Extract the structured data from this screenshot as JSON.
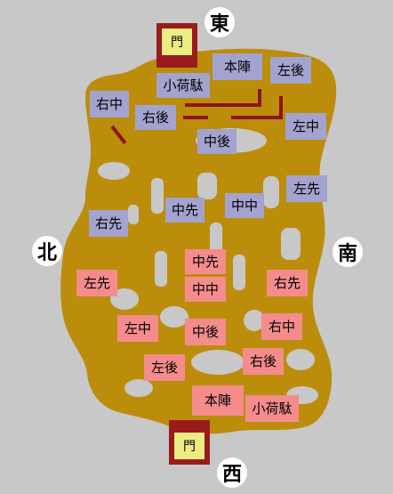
{
  "compass": {
    "north": "北",
    "south": "南",
    "east": "東",
    "west": "西"
  },
  "gates": {
    "east_gate": "門",
    "west_gate": "門"
  },
  "east_army": {
    "honjin": "本陣",
    "kobato": "小荷駄",
    "sago": "左後",
    "uchu": "右中",
    "ugo": "右後",
    "sachu": "左中",
    "chugo": "中後",
    "sasen": "左先",
    "chusen": "中先",
    "chuchu": "中中",
    "usen": "右先"
  },
  "west_army": {
    "chusen": "中先",
    "sasen": "左先",
    "chuchu": "中中",
    "usen": "右先",
    "sachu": "左中",
    "chugo": "中後",
    "uchu": "右中",
    "sago": "左後",
    "ugo": "右後",
    "honjin": "本陣",
    "kobato": "小荷駄"
  },
  "colors": {
    "background": "#c8c8c8",
    "terrain": "#bb8d0b",
    "east_army": "#a3a3cf",
    "west_army": "#f58c8c",
    "gate_frame": "#9a1b1b",
    "gate_inner": "#ecec83",
    "wall": "#8a1616",
    "obstacle": "#c8c8c8"
  }
}
